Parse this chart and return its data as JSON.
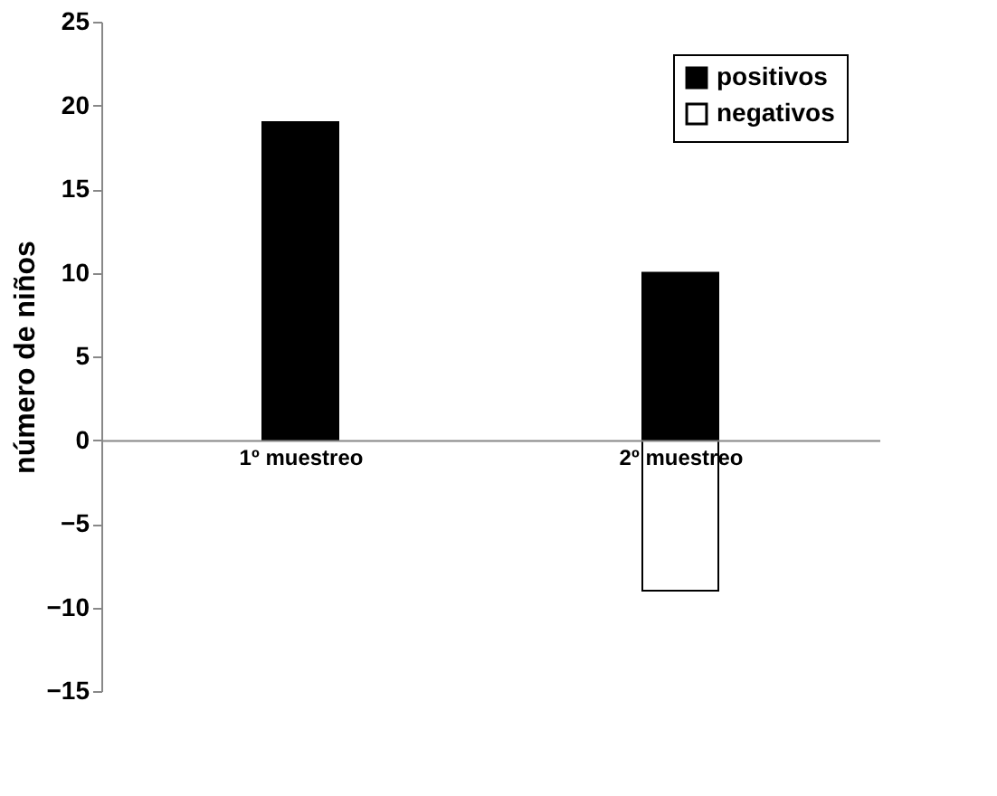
{
  "chart_data": {
    "type": "bar",
    "ylabel": "número de niños",
    "categories": [
      "1º muestreo",
      "2º muestreo"
    ],
    "series": [
      {
        "name": "positivos",
        "color": "#000000",
        "values": [
          19,
          10
        ]
      },
      {
        "name": "negativos",
        "color": "#ffffff",
        "values": [
          null,
          -9
        ]
      }
    ],
    "stacked": true,
    "ylim": [
      -15,
      25
    ],
    "yticks": [
      -15,
      -10,
      -5,
      0,
      5,
      10,
      15,
      20,
      25
    ],
    "grid": false,
    "legend": "top right"
  }
}
